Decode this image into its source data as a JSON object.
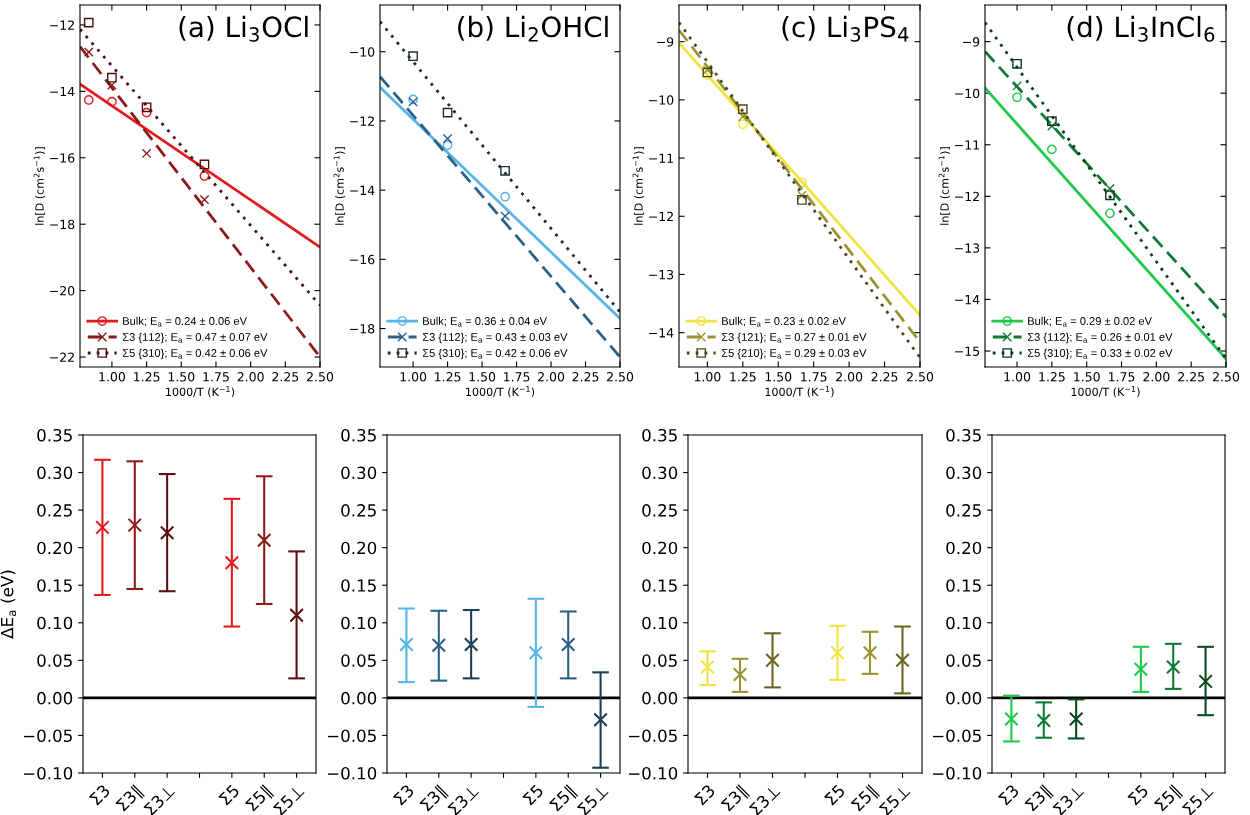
{
  "chart_data": [
    {
      "type": "line",
      "title": "(a) Li$_{3}$OCl",
      "xlabel": "1000/T (K$^{−1}$)",
      "ylabel": "ln[D (cm$^{2}$s$^{−1}$)]",
      "xlim": [
        0.77,
        2.5
      ],
      "ylim": [
        -22.3,
        -11.4
      ],
      "xticks": [
        {
          "value": 1.0,
          "label": "1.00"
        },
        {
          "value": 1.25,
          "label": "1.25"
        },
        {
          "value": 1.5,
          "label": "1.50"
        },
        {
          "value": 1.75,
          "label": "1.75"
        },
        {
          "value": 2.0,
          "label": "2.00"
        },
        {
          "value": 2.25,
          "label": "2.25"
        },
        {
          "value": 2.5,
          "label": "2.50"
        }
      ],
      "yticks": [
        {
          "value": -12,
          "label": "−12"
        },
        {
          "value": -14,
          "label": "−14"
        },
        {
          "value": -16,
          "label": "−16"
        },
        {
          "value": -18,
          "label": "−18"
        },
        {
          "value": -20,
          "label": "−20"
        },
        {
          "value": -22,
          "label": "−22"
        }
      ],
      "legend": "bottom left",
      "series": [
        {
          "type": "scatter",
          "marker": "circle",
          "color": "#e31a1c",
          "x": [
            0.833,
            1.0,
            1.25,
            1.667
          ],
          "values": [
            -14.26,
            -14.31,
            -14.64,
            -16.55
          ]
        },
        {
          "type": "line",
          "name": "Bulk; E$_{a}$ = 0.24 ± 0.06 eV",
          "line_style": "solid",
          "color": "#e31a1c",
          "x": [
            0.77,
            2.5
          ],
          "values": [
            -13.78,
            -18.69
          ]
        },
        {
          "type": "scatter",
          "marker": "cross",
          "color": "#8b1a1a",
          "x": [
            0.833,
            1.0,
            1.25,
            1.667
          ],
          "values": [
            -12.82,
            -13.81,
            -15.87,
            -17.26
          ]
        },
        {
          "type": "line",
          "name": "Σ3 {112}; E$_{a}$ = 0.47 ± 0.07 eV",
          "line_style": "dashed",
          "color": "#8b1a1a",
          "x": [
            0.77,
            2.5
          ],
          "values": [
            -12.65,
            -22.0
          ]
        },
        {
          "type": "scatter",
          "marker": "square",
          "color": "#4a1010",
          "x": [
            0.833,
            1.0,
            1.25,
            1.667
          ],
          "values": [
            -11.93,
            -13.59,
            -14.48,
            -16.2
          ]
        },
        {
          "type": "line",
          "name": "Σ5 {310}; E$_{a}$ = 0.42 ± 0.06 eV",
          "line_style": "dotted",
          "color": "#4a1010",
          "x": [
            0.77,
            2.5
          ],
          "values": [
            -12.13,
            -20.44
          ]
        }
      ]
    },
    {
      "type": "line",
      "title": "(b) Li$_{2}$OHCl",
      "xlabel": "1000/T (K$^{−1}$)",
      "ylabel": "ln[D (cm$^{2}$s$^{−1}$)]",
      "xlim": [
        0.76,
        2.5
      ],
      "ylim": [
        -19.11,
        -8.65
      ],
      "xticks": [
        {
          "value": 1.0,
          "label": "1.00"
        },
        {
          "value": 1.25,
          "label": "1.25"
        },
        {
          "value": 1.5,
          "label": "1.50"
        },
        {
          "value": 1.75,
          "label": "1.75"
        },
        {
          "value": 2.0,
          "label": "2.00"
        },
        {
          "value": 2.25,
          "label": "2.25"
        },
        {
          "value": 2.5,
          "label": "2.50"
        }
      ],
      "yticks": [
        {
          "value": -10,
          "label": "−10"
        },
        {
          "value": -12,
          "label": "−12"
        },
        {
          "value": -14,
          "label": "−14"
        },
        {
          "value": -16,
          "label": "−16"
        },
        {
          "value": -18,
          "label": "−18"
        }
      ],
      "legend": "bottom left",
      "series": [
        {
          "type": "scatter",
          "marker": "circle",
          "color": "#56b4e9",
          "x": [
            1.0,
            1.25,
            1.667
          ],
          "values": [
            -11.38,
            -12.7,
            -14.19
          ]
        },
        {
          "type": "line",
          "name": "Bulk; E$_{a}$ = 0.36 ± 0.04 eV",
          "line_style": "solid",
          "color": "#56b4e9",
          "x": [
            0.76,
            2.5
          ],
          "values": [
            -11.03,
            -17.71
          ]
        },
        {
          "type": "scatter",
          "marker": "cross",
          "color": "#2c6185",
          "x": [
            1.0,
            1.25,
            1.667
          ],
          "values": [
            -11.45,
            -12.51,
            -14.75
          ]
        },
        {
          "type": "line",
          "name": "Σ3 {112}; E$_{a}$ = 0.43 ± 0.03 eV",
          "line_style": "dashed",
          "color": "#2c6185",
          "x": [
            0.76,
            2.5
          ],
          "values": [
            -10.72,
            -18.82
          ]
        },
        {
          "type": "scatter",
          "marker": "square",
          "color": "#1c2b3a",
          "x": [
            1.0,
            1.25,
            1.667
          ],
          "values": [
            -10.13,
            -11.76,
            -13.44
          ]
        },
        {
          "type": "line",
          "name": "Σ5 {310}; E$_{a}$ = 0.42 ± 0.06 eV",
          "line_style": "dotted",
          "color": "#1c2b3a",
          "x": [
            0.76,
            2.5
          ],
          "values": [
            -9.13,
            -17.52
          ]
        }
      ]
    },
    {
      "type": "line",
      "title": "(c) Li$_{3}$PS$_{4}$",
      "xlabel": "1000/T (K$^{−1}$)",
      "ylabel": "ln[D (cm$^{2}$s$^{−1}$)]",
      "xlim": [
        0.8,
        2.5
      ],
      "ylim": [
        -14.59,
        -8.37
      ],
      "xticks": [
        {
          "value": 1.0,
          "label": "1.00"
        },
        {
          "value": 1.25,
          "label": "1.25"
        },
        {
          "value": 1.5,
          "label": "1.50"
        },
        {
          "value": 1.75,
          "label": "1.75"
        },
        {
          "value": 2.0,
          "label": "2.00"
        },
        {
          "value": 2.25,
          "label": "2.25"
        },
        {
          "value": 2.5,
          "label": "2.50"
        }
      ],
      "yticks": [
        {
          "value": -9,
          "label": "−9"
        },
        {
          "value": -10,
          "label": "−10"
        },
        {
          "value": -11,
          "label": "−11"
        },
        {
          "value": -12,
          "label": "−12"
        },
        {
          "value": -13,
          "label": "−13"
        },
        {
          "value": -14,
          "label": "−14"
        }
      ],
      "legend": "bottom left",
      "series": [
        {
          "type": "scatter",
          "marker": "circle",
          "color": "#f0e442",
          "x": [
            1.0,
            1.25,
            1.667
          ],
          "values": [
            -9.57,
            -10.42,
            -11.42
          ]
        },
        {
          "type": "line",
          "name": "Bulk; E$_{a}$ = 0.23 ± 0.02 eV",
          "line_style": "solid",
          "color": "#f0e442",
          "x": [
            0.8,
            2.5
          ],
          "values": [
            -9.02,
            -13.7
          ]
        },
        {
          "type": "scatter",
          "marker": "cross",
          "color": "#9a9430",
          "x": [
            1.0,
            1.25,
            1.667
          ],
          "values": [
            -9.49,
            -10.29,
            -11.64
          ]
        },
        {
          "type": "line",
          "name": "Σ3 {121}; E$_{a}$ = 0.27 ± 0.01 eV",
          "line_style": "dashed",
          "color": "#9a9430",
          "x": [
            0.8,
            2.5
          ],
          "values": [
            -8.8,
            -14.16
          ]
        },
        {
          "type": "scatter",
          "marker": "square",
          "color": "#4a4520",
          "x": [
            1.0,
            1.25,
            1.667
          ],
          "values": [
            -9.53,
            -10.16,
            -11.72
          ]
        },
        {
          "type": "line",
          "name": "Σ5 {210}; E$_{a}$ = 0.29 ± 0.03 eV",
          "line_style": "dotted",
          "color": "#4a4520",
          "x": [
            0.8,
            2.5
          ],
          "values": [
            -8.67,
            -14.43
          ]
        }
      ]
    },
    {
      "type": "line",
      "title": "(d) Li$_{3}$InCl$_{6}$",
      "xlabel": "1000/T (K$^{−1}$)",
      "ylabel": "ln[D (cm$^{2}$s$^{−1}$)]",
      "xlim": [
        0.77,
        2.5
      ],
      "ylim": [
        -15.31,
        -8.29
      ],
      "xticks": [
        {
          "value": 1.0,
          "label": "1.00"
        },
        {
          "value": 1.25,
          "label": "1.25"
        },
        {
          "value": 1.5,
          "label": "1.50"
        },
        {
          "value": 1.75,
          "label": "1.75"
        },
        {
          "value": 2.0,
          "label": "2.00"
        },
        {
          "value": 2.25,
          "label": "2.25"
        },
        {
          "value": 2.5,
          "label": "2.50"
        }
      ],
      "yticks": [
        {
          "value": -9,
          "label": "−9"
        },
        {
          "value": -10,
          "label": "−10"
        },
        {
          "value": -11,
          "label": "−11"
        },
        {
          "value": -12,
          "label": "−12"
        },
        {
          "value": -13,
          "label": "−13"
        },
        {
          "value": -14,
          "label": "−14"
        },
        {
          "value": -15,
          "label": "−15"
        }
      ],
      "legend": "bottom left",
      "series": [
        {
          "type": "scatter",
          "marker": "circle",
          "color": "#1ec84a",
          "x": [
            1.0,
            1.25,
            1.667
          ],
          "values": [
            -10.08,
            -11.09,
            -12.33
          ]
        },
        {
          "type": "line",
          "name": "Bulk; E$_{a}$ = 0.29 ± 0.02 eV",
          "line_style": "solid",
          "color": "#1ec84a",
          "x": [
            0.77,
            2.5
          ],
          "values": [
            -9.9,
            -15.15
          ]
        },
        {
          "type": "scatter",
          "marker": "cross",
          "color": "#0f7a34",
          "x": [
            1.0,
            1.25,
            1.667
          ],
          "values": [
            -9.86,
            -10.64,
            -11.85
          ]
        },
        {
          "type": "line",
          "name": "Σ3 {112}; E$_{a}$ = 0.26 ± 0.01 eV",
          "line_style": "dashed",
          "color": "#0f7a34",
          "x": [
            0.77,
            2.5
          ],
          "values": [
            -9.19,
            -14.34
          ]
        },
        {
          "type": "scatter",
          "marker": "square",
          "color": "#0a3a1c",
          "x": [
            1.0,
            1.25,
            1.667
          ],
          "values": [
            -9.43,
            -10.54,
            -11.98
          ]
        },
        {
          "type": "line",
          "name": "Σ5 {310}; E$_{a}$ = 0.33 ± 0.02 eV",
          "line_style": "dotted",
          "color": "#0a3a1c",
          "x": [
            0.77,
            2.5
          ],
          "values": [
            -8.63,
            -15.15
          ]
        }
      ]
    },
    {
      "type": "scatter",
      "ylabel": "ΔE$_{a}$ (eV)",
      "categories": [
        "Σ3",
        "Σ3∥",
        "Σ3⊥",
        null,
        "Σ5",
        "Σ5∥",
        "Σ5⊥"
      ],
      "ylim": [
        -0.1,
        0.35
      ],
      "yticks": [
        {
          "value": -0.1,
          "label": "−0.10"
        },
        {
          "value": -0.05,
          "label": "−0.05"
        },
        {
          "value": 0,
          "label": "0.00"
        },
        {
          "value": 0.05,
          "label": "0.05"
        },
        {
          "value": 0.1,
          "label": "0.10"
        },
        {
          "value": 0.15,
          "label": "0.15"
        },
        {
          "value": 0.2,
          "label": "0.20"
        },
        {
          "value": 0.25,
          "label": "0.25"
        },
        {
          "value": 0.3,
          "label": "0.30"
        },
        {
          "value": 0.35,
          "label": "0.35"
        }
      ],
      "marker": "cross",
      "ref_lines": [
        {
          "axis": "y",
          "value": 0,
          "color": "#000000"
        }
      ],
      "values": [
        0.227,
        0.23,
        0.22,
        null,
        0.18,
        0.21,
        0.11
      ],
      "errors": [
        [
          0.137,
          0.317
        ],
        [
          0.145,
          0.315
        ],
        [
          0.142,
          0.298
        ],
        null,
        [
          0.095,
          0.265
        ],
        [
          0.125,
          0.295
        ],
        [
          0.026,
          0.195
        ]
      ],
      "colors": [
        "#e31a1c",
        "#8b1a1a",
        "#5a1010",
        "#000000",
        "#e31a1c",
        "#8b1a1a",
        "#5a1010"
      ]
    },
    {
      "type": "scatter",
      "categories": [
        "Σ3",
        "Σ3∥",
        "Σ3⊥",
        null,
        "Σ5",
        "Σ5∥",
        "Σ5⊥"
      ],
      "ylim": [
        -0.1,
        0.35
      ],
      "yticks": [
        {
          "value": -0.1,
          "label": "−0.10"
        },
        {
          "value": -0.05,
          "label": "−0.05"
        },
        {
          "value": 0,
          "label": "0.00"
        },
        {
          "value": 0.05,
          "label": "0.05"
        },
        {
          "value": 0.1,
          "label": "0.10"
        },
        {
          "value": 0.15,
          "label": "0.15"
        },
        {
          "value": 0.2,
          "label": "0.20"
        },
        {
          "value": 0.25,
          "label": "0.25"
        },
        {
          "value": 0.3,
          "label": "0.30"
        },
        {
          "value": 0.35,
          "label": "0.35"
        }
      ],
      "marker": "cross",
      "ref_lines": [
        {
          "axis": "y",
          "value": 0,
          "color": "#000000"
        }
      ],
      "values": [
        0.071,
        0.07,
        0.071,
        null,
        0.06,
        0.071,
        -0.029
      ],
      "errors": [
        [
          0.021,
          0.119
        ],
        [
          0.023,
          0.116
        ],
        [
          0.026,
          0.117
        ],
        null,
        [
          -0.012,
          0.132
        ],
        [
          0.026,
          0.115
        ],
        [
          -0.093,
          0.034
        ]
      ],
      "colors": [
        "#56b4e9",
        "#2c6185",
        "#1c3e56",
        "#000000",
        "#56b4e9",
        "#2c6185",
        "#1c3e56"
      ]
    },
    {
      "type": "scatter",
      "categories": [
        "Σ3",
        "Σ3∥",
        "Σ3⊥",
        null,
        "Σ5",
        "Σ5∥",
        "Σ5⊥"
      ],
      "ylim": [
        -0.1,
        0.35
      ],
      "yticks": [
        {
          "value": -0.1,
          "label": "−0.10"
        },
        {
          "value": -0.05,
          "label": "−0.05"
        },
        {
          "value": 0,
          "label": "0.00"
        },
        {
          "value": 0.05,
          "label": "0.05"
        },
        {
          "value": 0.1,
          "label": "0.10"
        },
        {
          "value": 0.15,
          "label": "0.15"
        },
        {
          "value": 0.2,
          "label": "0.20"
        },
        {
          "value": 0.25,
          "label": "0.25"
        },
        {
          "value": 0.3,
          "label": "0.30"
        },
        {
          "value": 0.35,
          "label": "0.35"
        }
      ],
      "marker": "cross",
      "ref_lines": [
        {
          "axis": "y",
          "value": 0,
          "color": "#000000"
        }
      ],
      "values": [
        0.041,
        0.031,
        0.05,
        null,
        0.06,
        0.06,
        0.05
      ],
      "errors": [
        [
          0.017,
          0.062
        ],
        [
          0.008,
          0.052
        ],
        [
          0.014,
          0.086
        ],
        null,
        [
          0.024,
          0.096
        ],
        [
          0.032,
          0.088
        ],
        [
          0.006,
          0.095
        ]
      ],
      "colors": [
        "#f0e442",
        "#9a9430",
        "#6b6520",
        "#000000",
        "#f0e442",
        "#9a9430",
        "#6b6520"
      ]
    },
    {
      "type": "scatter",
      "categories": [
        "Σ3",
        "Σ3∥",
        "Σ3⊥",
        null,
        "Σ5",
        "Σ5∥",
        "Σ5⊥"
      ],
      "ylim": [
        -0.1,
        0.35
      ],
      "yticks": [
        {
          "value": -0.1,
          "label": "−0.10"
        },
        {
          "value": -0.05,
          "label": "−0.05"
        },
        {
          "value": 0,
          "label": "0.00"
        },
        {
          "value": 0.05,
          "label": "0.05"
        },
        {
          "value": 0.1,
          "label": "0.10"
        },
        {
          "value": 0.15,
          "label": "0.15"
        },
        {
          "value": 0.2,
          "label": "0.20"
        },
        {
          "value": 0.25,
          "label": "0.25"
        },
        {
          "value": 0.3,
          "label": "0.30"
        },
        {
          "value": 0.35,
          "label": "0.35"
        }
      ],
      "marker": "cross",
      "ref_lines": [
        {
          "axis": "y",
          "value": 0,
          "color": "#000000"
        }
      ],
      "values": [
        -0.028,
        -0.03,
        -0.028,
        null,
        0.038,
        0.041,
        0.022
      ],
      "errors": [
        [
          -0.058,
          0.003
        ],
        [
          -0.053,
          -0.006
        ],
        [
          -0.054,
          -0.002
        ],
        null,
        [
          0.008,
          0.068
        ],
        [
          0.012,
          0.072
        ],
        [
          -0.023,
          0.068
        ]
      ],
      "colors": [
        "#1ec84a",
        "#0f7a34",
        "#0a4a20",
        "#000000",
        "#1ec84a",
        "#0f7a34",
        "#0a4a20"
      ]
    }
  ]
}
